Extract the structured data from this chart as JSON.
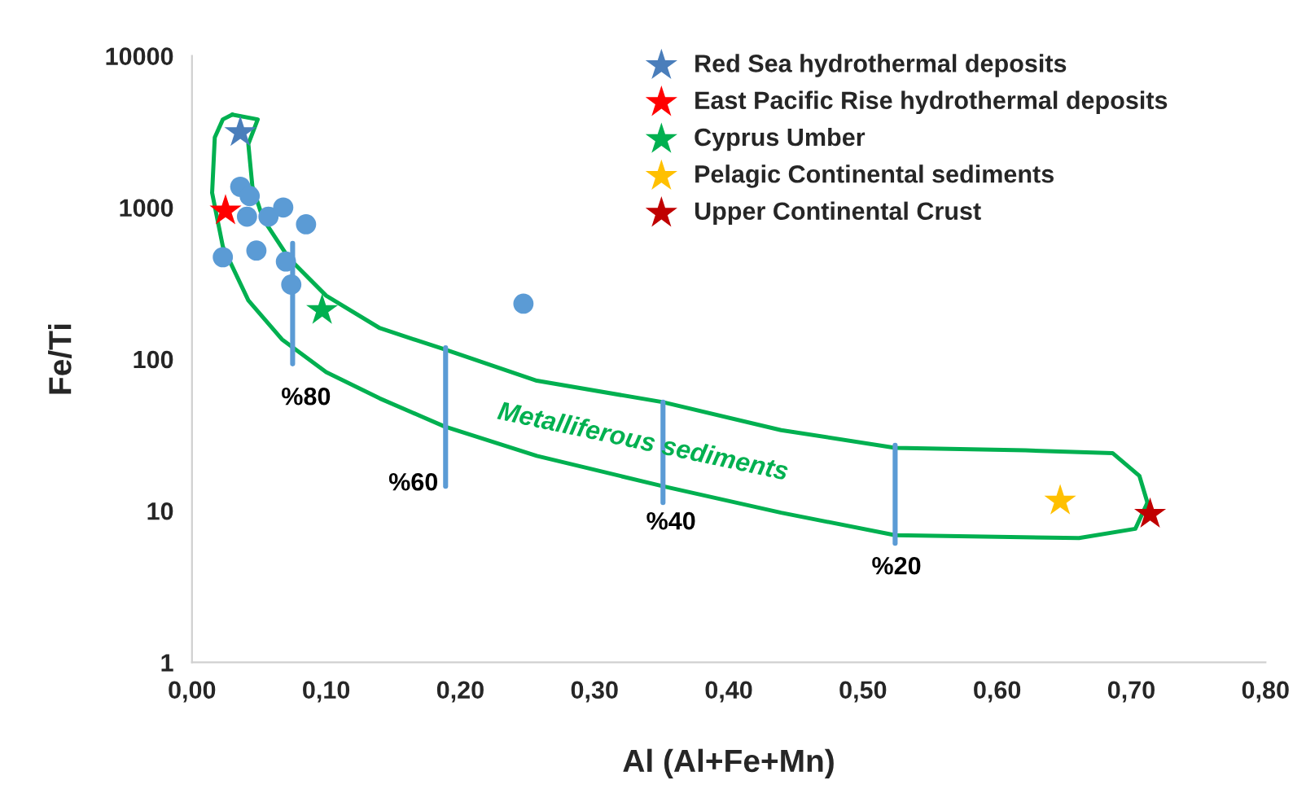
{
  "chart_data": {
    "type": "scatter",
    "xlabel": "Al (Al+Fe+Mn)",
    "ylabel": "Fe/Ti",
    "log": "y",
    "xlim": [
      0,
      0.8
    ],
    "xticks": [
      {
        "value": 0,
        "label": "0,00"
      },
      {
        "value": 0.1,
        "label": "0,10"
      },
      {
        "value": 0.2,
        "label": "0,20"
      },
      {
        "value": 0.3,
        "label": "0,30"
      },
      {
        "value": 0.4,
        "label": "0,40"
      },
      {
        "value": 0.5,
        "label": "0,50"
      },
      {
        "value": 0.6,
        "label": "0,60"
      },
      {
        "value": 0.7,
        "label": "0,70"
      },
      {
        "value": 0.8,
        "label": "0,80"
      }
    ],
    "ylim": [
      1,
      10000
    ],
    "yticks": [
      1,
      10,
      100,
      1000,
      10000
    ],
    "grid": false,
    "legend": "top right",
    "series": [
      {
        "type": "line",
        "color": "#00b050",
        "marker": "none",
        "x": [
          0.03,
          0.049,
          0.042,
          0.045,
          0.053,
          0.072,
          0.1,
          0.14,
          0.188,
          0.257,
          0.351,
          0.439,
          0.524,
          0.621,
          0.686,
          0.706,
          0.712
        ],
        "values": [
          4100,
          3810,
          2620,
          1380,
          840,
          465,
          262,
          160,
          116,
          72,
          52,
          34,
          26,
          25,
          24,
          17,
          11.3
        ]
      },
      {
        "type": "line",
        "color": "#00b050",
        "marker": "none",
        "x": [
          0.712,
          0.703,
          0.661,
          0.524,
          0.439,
          0.351,
          0.257,
          0.188,
          0.14,
          0.1,
          0.067,
          0.042,
          0.023,
          0.015,
          0.017,
          0.023,
          0.03
        ],
        "values": [
          11.3,
          7.6,
          6.6,
          6.9,
          9.7,
          14.5,
          23,
          36,
          55,
          82,
          135,
          244,
          552,
          1250,
          2900,
          3810,
          4100
        ]
      },
      {
        "type": "line",
        "color": "#5b9bd5",
        "marker": "none",
        "x": [
          0.075,
          0.075
        ],
        "values": [
          580,
          93
        ]
      },
      {
        "type": "line",
        "color": "#5b9bd5",
        "marker": "none",
        "x": [
          0.189,
          0.189
        ],
        "values": [
          119,
          14.5
        ]
      },
      {
        "type": "line",
        "color": "#5b9bd5",
        "marker": "none",
        "x": [
          0.351,
          0.351
        ],
        "values": [
          52,
          11.3
        ]
      },
      {
        "type": "line",
        "color": "#5b9bd5",
        "marker": "none",
        "x": [
          0.524,
          0.524
        ],
        "values": [
          27,
          6.1
        ]
      },
      {
        "color": "#5b9bd5",
        "marker": "circle",
        "x": [
          0.023,
          0.036,
          0.043,
          0.041,
          0.048,
          0.057,
          0.068,
          0.07,
          0.074,
          0.085,
          0.247
        ],
        "values": [
          470,
          1370,
          1190,
          870,
          520,
          870,
          1000,
          440,
          310,
          775,
          232
        ]
      },
      {
        "name": "Red Sea hydrothermal deposits",
        "color": "#4a7ebb",
        "marker": "star",
        "x": [
          0.036
        ],
        "values": [
          3130
        ]
      },
      {
        "name": "East Pacific Rise hydrothermal deposits",
        "color": "#ff0000",
        "marker": "star",
        "x": [
          0.025
        ],
        "values": [
          950
        ]
      },
      {
        "name": "Cyprus Umber",
        "color": "#00b050",
        "marker": "star",
        "x": [
          0.097
        ],
        "values": [
          210
        ]
      },
      {
        "name": "Pelagic Continental sediments",
        "color": "#ffc000",
        "marker": "star",
        "x": [
          0.647
        ],
        "values": [
          11.6
        ]
      },
      {
        "name": "Upper Continental Crust",
        "color": "#c00000",
        "marker": "star",
        "x": [
          0.714
        ],
        "values": [
          9.5
        ]
      }
    ],
    "annotations": [
      "%80",
      "%60",
      "%40",
      "%20",
      "Metalliferous sediments"
    ]
  }
}
